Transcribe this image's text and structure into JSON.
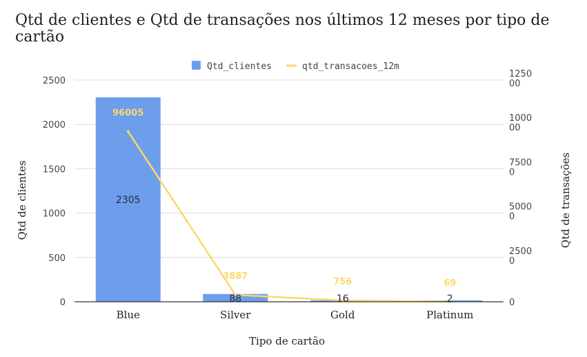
{
  "chart_data": {
    "type": "bar",
    "title": "Qtd de clientes e Qtd de transações nos últimos 12 meses por tipo de cartão",
    "xlabel": "Tipo de cartão",
    "ylabel": "Qtd de clientes",
    "y2label": "Qtd de transações",
    "categories": [
      "Blue",
      "Silver",
      "Gold",
      "Platinum"
    ],
    "ylim": [
      0,
      2500
    ],
    "yticks": [
      "0",
      "500",
      "1000",
      "1500",
      "2000",
      "2500"
    ],
    "y2lim": [
      0,
      125000
    ],
    "y2ticks": [
      {
        "line1": "0",
        "line2": ""
      },
      {
        "line1": "2500",
        "line2": "0"
      },
      {
        "line1": "5000",
        "line2": "0"
      },
      {
        "line1": "7500",
        "line2": "0"
      },
      {
        "line1": "1000",
        "line2": "00"
      },
      {
        "line1": "1250",
        "line2": "00"
      }
    ],
    "y2values": [
      0,
      25000,
      50000,
      75000,
      100000,
      125000
    ],
    "series": [
      {
        "name": "Qtd_clientes",
        "type": "bar",
        "axis": "left",
        "color": "#6d9eeb",
        "values": [
          2305,
          88,
          16,
          2
        ],
        "labels": [
          "2305",
          "88",
          "16",
          "2"
        ]
      },
      {
        "name": "qtd_transacoes_12m",
        "type": "line",
        "axis": "right",
        "color": "#fcd86b",
        "values": [
          96005,
          3887,
          756,
          69
        ],
        "labels": [
          "96005",
          "3887",
          "756",
          "69"
        ]
      }
    ],
    "legend": "top-center",
    "grid": true
  }
}
